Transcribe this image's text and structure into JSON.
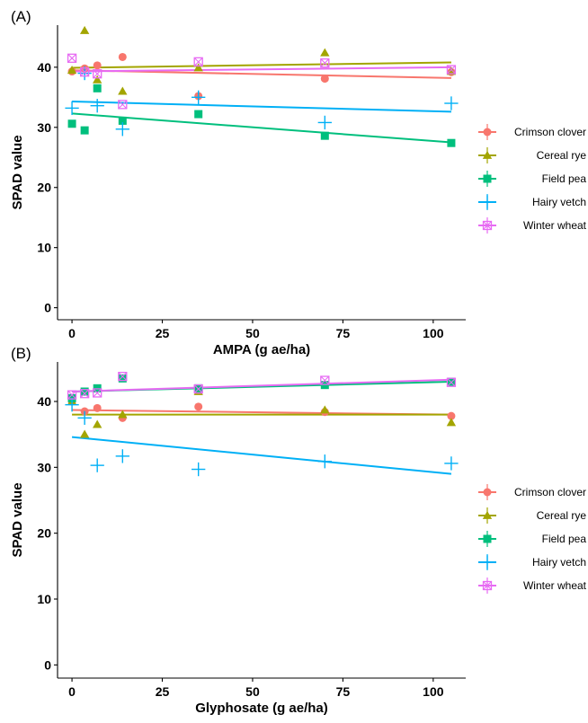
{
  "series_colors": {
    "Crimson clover": "#F8766D",
    "Cereal rye": "#A3A500",
    "Field pea": "#00BF7D",
    "Hairy vetch": "#00B0F6",
    "Winter wheat": "#E76BF3"
  },
  "series_markers": {
    "Crimson clover": "circle",
    "Cereal rye": "triangle",
    "Field pea": "square",
    "Hairy vetch": "plus",
    "Winter wheat": "square-cross"
  },
  "chart_data": [
    {
      "type": "scatter",
      "panel_label": "(A)",
      "xlabel": "AMPA (g ae/ha)",
      "ylabel": "SPAD value",
      "xlim": [
        -4,
        109
      ],
      "ylim": [
        -2,
        47
      ],
      "xticks": [
        0,
        25,
        50,
        75,
        100
      ],
      "yticks": [
        0,
        10,
        20,
        30,
        40
      ],
      "grid": false,
      "legend_position": "right",
      "series": [
        {
          "name": "Crimson clover",
          "x": [
            0,
            3.5,
            7,
            14,
            35,
            70,
            105
          ],
          "y": [
            39.3,
            39.8,
            40.3,
            41.7,
            35.2,
            38.1,
            39.2
          ],
          "fit": [
            39.5,
            38.2
          ]
        },
        {
          "name": "Cereal rye",
          "x": [
            0,
            3.5,
            7,
            14,
            35,
            70,
            105
          ],
          "y": [
            39.5,
            46.1,
            37.9,
            36.0,
            39.9,
            42.4,
            39.3
          ],
          "fit": [
            39.9,
            40.8
          ]
        },
        {
          "name": "Field pea",
          "x": [
            0,
            3.5,
            7,
            14,
            35,
            70,
            105
          ],
          "y": [
            30.6,
            29.5,
            36.5,
            31.1,
            32.2,
            28.6,
            27.4
          ],
          "fit": [
            32.3,
            27.5
          ]
        },
        {
          "name": "Hairy vetch",
          "x": [
            0,
            3.5,
            7,
            14,
            35,
            70,
            105
          ],
          "y": [
            33.2,
            39.0,
            33.6,
            29.7,
            35.0,
            30.8,
            34.0
          ],
          "fit": [
            34.3,
            32.6
          ]
        },
        {
          "name": "Winter wheat",
          "x": [
            0,
            3.5,
            7,
            14,
            35,
            70,
            105
          ],
          "y": [
            41.5,
            39.2,
            38.9,
            33.8,
            40.9,
            40.7,
            39.6
          ],
          "fit": [
            39.3,
            40.0
          ]
        }
      ]
    },
    {
      "type": "scatter",
      "panel_label": "(B)",
      "xlabel": "Glyphosate (g ae/ha)",
      "ylabel": "SPAD value",
      "xlim": [
        -4,
        109
      ],
      "ylim": [
        -2,
        46
      ],
      "xticks": [
        0,
        25,
        50,
        75,
        100
      ],
      "yticks": [
        0,
        10,
        20,
        30,
        40
      ],
      "grid": false,
      "legend_position": "right",
      "series": [
        {
          "name": "Crimson clover",
          "x": [
            0,
            3.5,
            7,
            14,
            35,
            70,
            105
          ],
          "y": [
            40.0,
            38.5,
            39.0,
            37.5,
            39.2,
            38.4,
            37.8
          ],
          "fit": [
            38.7,
            38.0
          ]
        },
        {
          "name": "Cereal rye",
          "x": [
            0,
            3.5,
            7,
            14,
            35,
            70,
            105
          ],
          "y": [
            40.0,
            35.0,
            36.5,
            38.0,
            41.5,
            38.7,
            36.8
          ],
          "fit": [
            38.0,
            38.0
          ]
        },
        {
          "name": "Field pea",
          "x": [
            0,
            3.5,
            7,
            14,
            35,
            70,
            105
          ],
          "y": [
            40.5,
            41.5,
            42.0,
            43.5,
            42.0,
            42.5,
            43.0
          ],
          "fit": [
            41.5,
            43.0
          ]
        },
        {
          "name": "Hairy vetch",
          "x": [
            0,
            3.5,
            7,
            14,
            35,
            70,
            105
          ],
          "y": [
            39.5,
            37.5,
            30.3,
            31.7,
            29.7,
            30.9,
            30.6
          ],
          "fit": [
            34.6,
            29.0
          ]
        },
        {
          "name": "Winter wheat",
          "x": [
            0,
            3.5,
            7,
            14,
            35,
            70,
            105
          ],
          "y": [
            41.0,
            41.2,
            41.3,
            43.8,
            41.9,
            43.2,
            42.9
          ],
          "fit": [
            41.5,
            43.3
          ]
        }
      ]
    }
  ]
}
